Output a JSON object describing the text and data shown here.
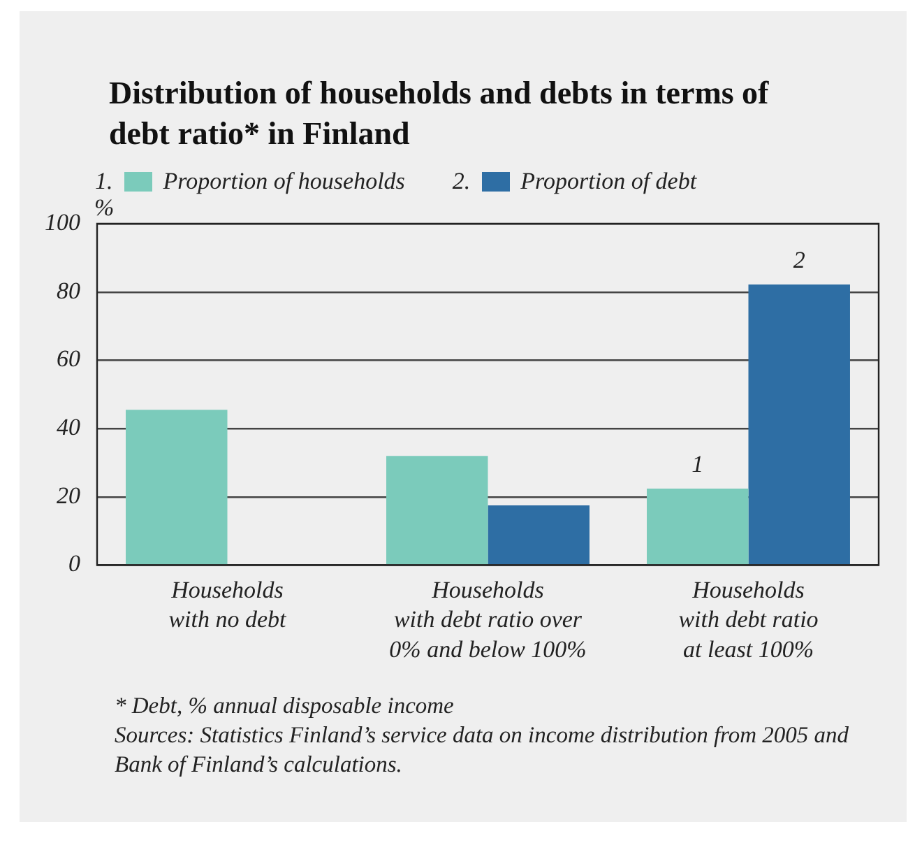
{
  "chart_data": {
    "type": "bar",
    "title": "Distribution of households and debts in terms of debt ratio* in Finland",
    "ylabel": "%",
    "categories": [
      "Households\nwith no debt",
      "Households\nwith debt ratio over\n0% and below 100%",
      "Households\nwith debt ratio\nat least 100%"
    ],
    "series": [
      {
        "name": "Proportion of households",
        "color": "#7bcbbb",
        "values": [
          45.5,
          32,
          22.4
        ]
      },
      {
        "name": "Proportion of debt",
        "color": "#2e6ea4",
        "values": [
          0,
          17.5,
          82.2
        ]
      }
    ],
    "ylim": [
      0,
      100
    ],
    "yticks": [
      0,
      20,
      40,
      60,
      80,
      100
    ],
    "grid": "y",
    "legend": "top left",
    "annotations": [
      "1.",
      "2.",
      {
        "text": "1",
        "x": "Households\nwith debt ratio\nat least 100%",
        "y": 22.4
      },
      {
        "text": "2",
        "x": "Households\nwith debt ratio\nat least 100%",
        "y": 82.2
      },
      "* Debt, % annual disposable income",
      "Sources: Statistics Finland’s service data on income distribution from 2005 and Bank of Finland’s calculations."
    ]
  }
}
